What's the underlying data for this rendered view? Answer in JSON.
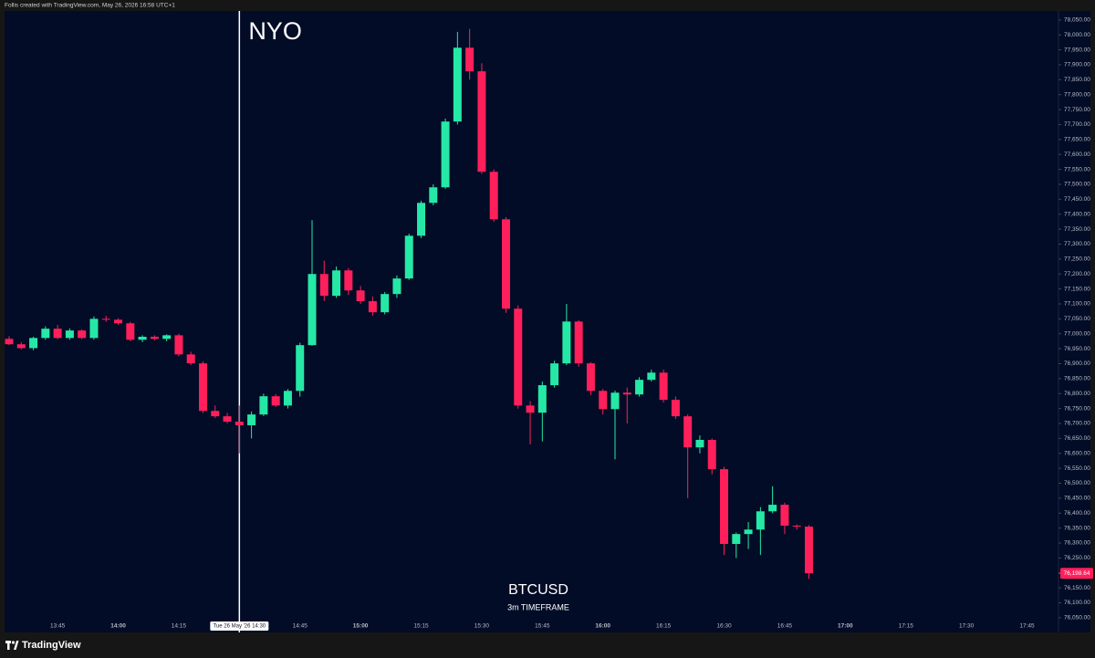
{
  "chart_data": {
    "type": "candlestick",
    "credit": "Follis created with TradingView.com, May 26, 2026 16:58 UTC+1",
    "brand": "TradingView",
    "symbol": "BTCUSD",
    "subtitle": "3m TIMEFRAME",
    "annotation": {
      "text": "NYO",
      "x": "14:30"
    },
    "crosshair": {
      "x": "14:30",
      "label": "Tue 26 May '26  14:30"
    },
    "last_price_label": "76,198.64",
    "up_color": "#26e8a6",
    "down_color": "#ff1f5b",
    "grid": false,
    "x": [
      "13:33",
      "13:36",
      "13:39",
      "13:42",
      "13:45",
      "13:48",
      "13:51",
      "13:54",
      "13:57",
      "14:00",
      "14:03",
      "14:06",
      "14:09",
      "14:12",
      "14:15",
      "14:18",
      "14:21",
      "14:24",
      "14:27",
      "14:30",
      "14:33",
      "14:36",
      "14:39",
      "14:42",
      "14:45",
      "14:48",
      "14:51",
      "14:54",
      "14:57",
      "15:00",
      "15:03",
      "15:06",
      "15:09",
      "15:12",
      "15:15",
      "15:18",
      "15:21",
      "15:24",
      "15:27",
      "15:30",
      "15:33",
      "15:36",
      "15:39",
      "15:42",
      "15:45",
      "15:48",
      "15:51",
      "15:54",
      "15:57",
      "16:00",
      "16:03",
      "16:06",
      "16:09",
      "16:12",
      "16:15",
      "16:18",
      "16:21",
      "16:24",
      "16:27",
      "16:30",
      "16:33",
      "16:36",
      "16:39",
      "16:42",
      "16:45",
      "16:48",
      "16:51"
    ],
    "open": [
      76983,
      76965,
      76952,
      76986,
      77017,
      76986,
      77011,
      76986,
      77050,
      77047,
      77035,
      76980,
      76990,
      76983,
      76995,
      76931,
      76901,
      76742,
      76724,
      76706,
      76694,
      76730,
      76791,
      76760,
      76809,
      76962,
      77200,
      77127,
      77212,
      77145,
      77109,
      77072,
      77133,
      77185,
      77328,
      77438,
      77490,
      77710,
      77957,
      77878,
      77542,
      77383,
      77084,
      76760,
      76736,
      76828,
      76901,
      77041,
      76901,
      76809,
      76748,
      76803,
      76797,
      76846,
      76870,
      76779,
      76724,
      76620,
      76645,
      76547,
      76297,
      76330,
      76345,
      76406,
      76428,
      76358,
      76355
    ],
    "high": [
      76992,
      76972,
      76990,
      77025,
      77030,
      77018,
      77015,
      77058,
      77060,
      77052,
      77040,
      76995,
      76995,
      76998,
      77000,
      76940,
      76908,
      76760,
      76735,
      76760,
      76740,
      76800,
      76798,
      76815,
      76970,
      77380,
      77245,
      77225,
      77220,
      77160,
      77125,
      77140,
      77195,
      77335,
      77445,
      77500,
      77720,
      78010,
      78020,
      77905,
      77550,
      77390,
      77095,
      76775,
      76840,
      76910,
      77100,
      77045,
      76905,
      76815,
      76810,
      76820,
      76855,
      76880,
      76880,
      76790,
      76730,
      76660,
      76650,
      76555,
      76335,
      76370,
      76420,
      76490,
      76435,
      76362,
      76360
    ],
    "low": [
      76962,
      76948,
      76945,
      76980,
      76982,
      76980,
      76982,
      76980,
      77040,
      77030,
      76975,
      76972,
      76978,
      76975,
      76925,
      76895,
      76735,
      76718,
      76700,
      76600,
      76650,
      76725,
      76755,
      76750,
      76790,
      76960,
      77110,
      77120,
      77130,
      77100,
      77060,
      77065,
      77120,
      77180,
      77320,
      77430,
      77485,
      77700,
      77850,
      77535,
      77375,
      77070,
      76750,
      76630,
      76640,
      76820,
      76895,
      76890,
      76795,
      76730,
      76580,
      76700,
      76790,
      76840,
      76770,
      76715,
      76450,
      76600,
      76530,
      76260,
      76250,
      76280,
      76260,
      76400,
      76330,
      76345,
      76180
    ],
    "close": [
      76965,
      76952,
      76986,
      77017,
      76986,
      77011,
      76986,
      77050,
      77047,
      77035,
      76980,
      76990,
      76983,
      76995,
      76931,
      76901,
      76742,
      76724,
      76706,
      76694,
      76730,
      76791,
      76760,
      76809,
      76962,
      77200,
      77127,
      77212,
      77145,
      77109,
      77072,
      77133,
      77185,
      77328,
      77438,
      77490,
      77710,
      77957,
      77878,
      77542,
      77383,
      77084,
      76760,
      76736,
      76828,
      76901,
      77041,
      76901,
      76809,
      76748,
      76803,
      76797,
      76846,
      76870,
      76779,
      76724,
      76620,
      76645,
      76547,
      76297,
      76330,
      76345,
      76406,
      76428,
      76358,
      76355,
      76198.64
    ],
    "xticks": [
      "13:45",
      "14:00",
      "14:15",
      "14:45",
      "15:00",
      "15:15",
      "15:30",
      "15:45",
      "16:00",
      "16:15",
      "16:30",
      "16:45",
      "17:00",
      "17:15",
      "17:30",
      "17:45"
    ],
    "ylim": [
      76010,
      78080
    ],
    "yticks": [
      {
        "value": 76050,
        "label": "76,050.00"
      },
      {
        "value": 76100,
        "label": "76,100.00"
      },
      {
        "value": 76150,
        "label": "76,150.00"
      },
      {
        "value": 76200,
        "label": "76,200.00"
      },
      {
        "value": 76250,
        "label": "76,250.00"
      },
      {
        "value": 76300,
        "label": "76,300.00"
      },
      {
        "value": 76350,
        "label": "76,350.00"
      },
      {
        "value": 76400,
        "label": "76,400.00"
      },
      {
        "value": 76450,
        "label": "76,450.00"
      },
      {
        "value": 76500,
        "label": "76,500.00"
      },
      {
        "value": 76550,
        "label": "76,550.00"
      },
      {
        "value": 76600,
        "label": "76,600.00"
      },
      {
        "value": 76650,
        "label": "76,650.00"
      },
      {
        "value": 76700,
        "label": "76,700.00"
      },
      {
        "value": 76750,
        "label": "76,750.00"
      },
      {
        "value": 76800,
        "label": "76,800.00"
      },
      {
        "value": 76850,
        "label": "76,850.00"
      },
      {
        "value": 76900,
        "label": "76,900.00"
      },
      {
        "value": 76950,
        "label": "76,950.00"
      },
      {
        "value": 77000,
        "label": "77,000.00"
      },
      {
        "value": 77050,
        "label": "77,050.00"
      },
      {
        "value": 77100,
        "label": "77,100.00"
      },
      {
        "value": 77150,
        "label": "77,150.00"
      },
      {
        "value": 77200,
        "label": "77,200.00"
      },
      {
        "value": 77250,
        "label": "77,250.00"
      },
      {
        "value": 77300,
        "label": "77,300.00"
      },
      {
        "value": 77350,
        "label": "77,350.00"
      },
      {
        "value": 77400,
        "label": "77,400.00"
      },
      {
        "value": 77450,
        "label": "77,450.00"
      },
      {
        "value": 77500,
        "label": "77,500.00"
      },
      {
        "value": 77550,
        "label": "77,550.00"
      },
      {
        "value": 77600,
        "label": "77,600.00"
      },
      {
        "value": 77650,
        "label": "77,650.00"
      },
      {
        "value": 77700,
        "label": "77,700.00"
      },
      {
        "value": 77750,
        "label": "77,750.00"
      },
      {
        "value": 77800,
        "label": "77,800.00"
      },
      {
        "value": 77850,
        "label": "77,850.00"
      },
      {
        "value": 77900,
        "label": "77,900.00"
      },
      {
        "value": 77950,
        "label": "77,950.00"
      },
      {
        "value": 78000,
        "label": "78,000.00"
      },
      {
        "value": 78050,
        "label": "78,050.00"
      }
    ]
  }
}
